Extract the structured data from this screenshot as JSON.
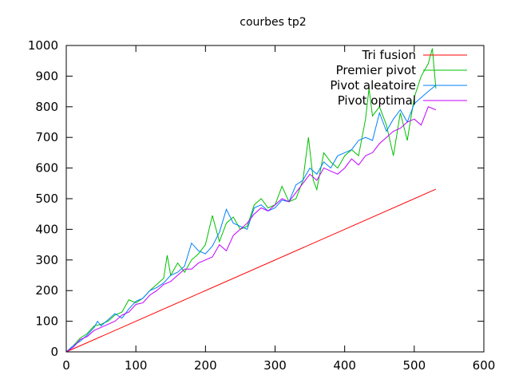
{
  "chart_data": {
    "type": "line",
    "title": "courbes tp2",
    "xlabel": "",
    "ylabel": "",
    "xlim": [
      0,
      600
    ],
    "ylim": [
      0,
      1000
    ],
    "xticks": [
      0,
      100,
      200,
      300,
      400,
      500,
      600
    ],
    "yticks": [
      0,
      100,
      200,
      300,
      400,
      500,
      600,
      700,
      800,
      900,
      1000
    ],
    "grid": false,
    "legend_position": "top-right",
    "series": [
      {
        "name": "Tri fusion",
        "color": "#ff0000",
        "x": [
          0,
          531
        ],
        "y": [
          0,
          531
        ]
      },
      {
        "name": "Premier pivot",
        "color": "#00c000",
        "x": [
          0,
          10,
          20,
          30,
          40,
          50,
          60,
          70,
          80,
          90,
          100,
          110,
          120,
          130,
          140,
          145,
          150,
          160,
          170,
          180,
          190,
          200,
          210,
          220,
          230,
          240,
          250,
          260,
          270,
          280,
          290,
          300,
          310,
          320,
          330,
          340,
          348,
          355,
          360,
          370,
          380,
          390,
          400,
          410,
          420,
          430,
          435,
          440,
          450,
          460,
          470,
          480,
          490,
          500,
          510,
          520,
          526,
          531
        ],
        "y": [
          0,
          20,
          45,
          60,
          85,
          90,
          100,
          120,
          130,
          170,
          160,
          175,
          200,
          220,
          240,
          315,
          250,
          290,
          260,
          300,
          320,
          350,
          445,
          360,
          420,
          440,
          400,
          410,
          480,
          500,
          470,
          480,
          540,
          490,
          500,
          560,
          700,
          560,
          530,
          650,
          620,
          600,
          640,
          660,
          640,
          760,
          860,
          770,
          800,
          740,
          640,
          780,
          690,
          830,
          900,
          940,
          990,
          860
        ]
      },
      {
        "name": "Pivot aleatoire",
        "color": "#0080ff",
        "x": [
          0,
          10,
          20,
          30,
          40,
          45,
          50,
          60,
          70,
          80,
          90,
          100,
          110,
          120,
          130,
          140,
          150,
          160,
          170,
          180,
          190,
          200,
          210,
          220,
          230,
          240,
          250,
          260,
          270,
          280,
          290,
          300,
          310,
          320,
          330,
          340,
          350,
          360,
          370,
          380,
          390,
          400,
          410,
          420,
          430,
          440,
          450,
          460,
          470,
          480,
          490,
          500,
          510,
          520,
          531
        ],
        "y": [
          0,
          20,
          35,
          55,
          80,
          100,
          85,
          105,
          125,
          110,
          140,
          165,
          175,
          200,
          210,
          225,
          250,
          260,
          280,
          355,
          330,
          320,
          345,
          390,
          465,
          420,
          410,
          400,
          470,
          480,
          460,
          470,
          495,
          490,
          545,
          560,
          600,
          580,
          620,
          600,
          640,
          650,
          660,
          690,
          700,
          690,
          780,
          720,
          760,
          790,
          750,
          810,
          830,
          850,
          870
        ]
      },
      {
        "name": "Pivot optimal",
        "color": "#c000ff",
        "x": [
          0,
          10,
          20,
          30,
          40,
          50,
          60,
          70,
          80,
          90,
          100,
          110,
          120,
          130,
          140,
          150,
          160,
          170,
          180,
          190,
          200,
          210,
          220,
          230,
          240,
          250,
          260,
          270,
          280,
          290,
          300,
          310,
          320,
          330,
          340,
          350,
          360,
          370,
          380,
          390,
          400,
          410,
          420,
          430,
          440,
          450,
          460,
          470,
          480,
          490,
          500,
          510,
          520,
          531
        ],
        "y": [
          0,
          15,
          40,
          50,
          70,
          80,
          90,
          100,
          120,
          130,
          155,
          160,
          185,
          200,
          220,
          230,
          250,
          270,
          270,
          290,
          300,
          310,
          350,
          330,
          380,
          400,
          420,
          450,
          470,
          460,
          480,
          500,
          490,
          520,
          550,
          580,
          560,
          600,
          590,
          580,
          600,
          630,
          610,
          640,
          650,
          680,
          700,
          720,
          730,
          750,
          760,
          740,
          800,
          790
        ]
      }
    ]
  }
}
